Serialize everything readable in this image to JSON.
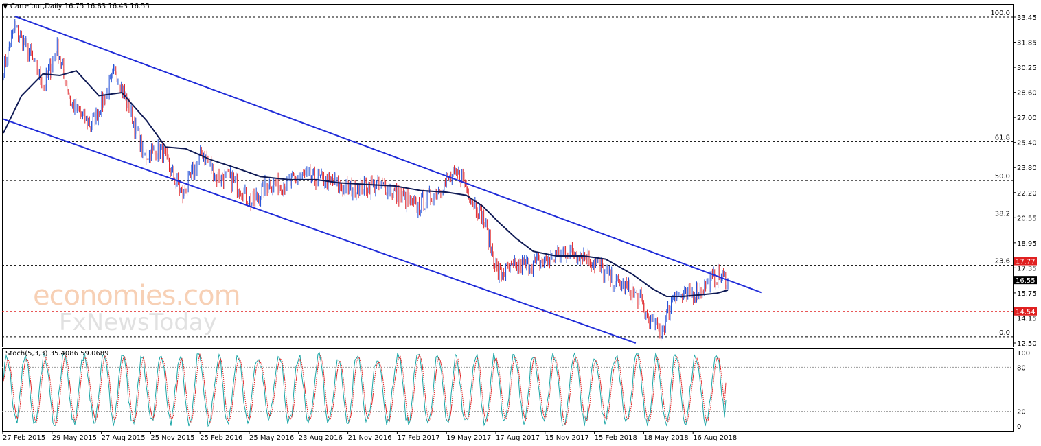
{
  "header": {
    "main_title": "Carrefour,Daily  16.75 16.83 16.43 16.55",
    "osc_title": "Stoch(5,3,3) 35.4086 59.0689"
  },
  "watermark": {
    "line1": "economies.com",
    "line2": "FxNewsToday"
  },
  "colors": {
    "up": "#1c4bd6",
    "down": "#e0262a",
    "ma": "#0f1a55",
    "channel": "#1f2bd8",
    "grid": "#000000",
    "red_level": "#e02020",
    "price_tag": "#000000",
    "stoch_main": "#1aa6a6",
    "stoch_signal": "#e02020"
  },
  "chart_data": [
    {
      "type": "line",
      "title": "Carrefour,Daily",
      "ohlc_last": {
        "open": 16.75,
        "high": 16.83,
        "low": 16.43,
        "close": 16.55
      },
      "y_ticks": [
        "33.45",
        "31.85",
        "30.25",
        "28.60",
        "27.00",
        "25.40",
        "23.80",
        "22.20",
        "20.55",
        "18.95",
        "17.35",
        "15.75",
        "14.15",
        "12.50"
      ],
      "ylim": [
        12.5,
        33.45
      ],
      "x_tick_labels": [
        "27 Feb 2015",
        "29 May 2015",
        "27 Aug 2015",
        "25 Nov 2015",
        "25 Feb 2016",
        "25 May 2016",
        "23 Aug 2016",
        "21 Nov 2016",
        "17 Feb 2017",
        "19 May 2017",
        "17 Aug 2017",
        "15 Nov 2017",
        "15 Feb 2018",
        "18 May 2018",
        "16 Aug 2018"
      ],
      "price_path": {
        "x": [
          "2015-02-27",
          "2015-03-20",
          "2015-04-15",
          "2015-05-12",
          "2015-06-05",
          "2015-07-01",
          "2015-08-05",
          "2015-08-27",
          "2015-09-20",
          "2015-10-20",
          "2015-11-10",
          "2015-12-10",
          "2016-01-20",
          "2016-02-25",
          "2016-03-20",
          "2016-04-20",
          "2016-05-25",
          "2016-06-24",
          "2016-07-20",
          "2016-08-23",
          "2016-10-01",
          "2016-11-21",
          "2016-12-20",
          "2017-01-20",
          "2017-02-17",
          "2017-03-20",
          "2017-04-20",
          "2017-05-19",
          "2017-06-10",
          "2017-06-30",
          "2017-07-20",
          "2017-08-17",
          "2017-09-20",
          "2017-10-20",
          "2017-11-15",
          "2017-12-20",
          "2018-01-20",
          "2018-02-15",
          "2018-03-10",
          "2018-04-10",
          "2018-05-01",
          "2018-05-18",
          "2018-06-10",
          "2018-07-05",
          "2018-07-25",
          "2018-08-16",
          "2018-09-20",
          "2018-10-10"
        ],
        "y": [
          30.2,
          32.8,
          31.2,
          29.0,
          31.5,
          27.8,
          26.5,
          28.0,
          30.0,
          27.0,
          24.5,
          25.0,
          22.0,
          24.8,
          23.2,
          23.0,
          21.5,
          22.8,
          22.6,
          23.2,
          23.0,
          22.4,
          22.6,
          22.6,
          22.0,
          21.2,
          22.0,
          23.0,
          23.3,
          21.8,
          20.6,
          16.9,
          17.4,
          17.6,
          17.8,
          18.4,
          18.2,
          17.5,
          16.6,
          16.0,
          15.4,
          14.0,
          13.2,
          15.8,
          15.4,
          15.8,
          16.8,
          16.55
        ]
      },
      "ma_path": {
        "x": [
          "2015-02-27",
          "2015-04-01",
          "2015-05-10",
          "2015-06-10",
          "2015-07-10",
          "2015-08-20",
          "2015-10-01",
          "2015-11-15",
          "2015-12-20",
          "2016-01-25",
          "2016-03-10",
          "2016-05-01",
          "2016-06-10",
          "2016-08-01",
          "2016-09-20",
          "2016-11-01",
          "2016-12-20",
          "2017-02-10",
          "2017-03-30",
          "2017-05-15",
          "2017-06-20",
          "2017-07-20",
          "2017-08-20",
          "2017-09-20",
          "2017-10-20",
          "2017-12-01",
          "2018-01-20",
          "2018-03-01",
          "2018-04-20",
          "2018-05-25",
          "2018-06-20",
          "2018-07-20",
          "2018-08-20",
          "2018-09-20",
          "2018-10-10"
        ],
        "y": [
          26.0,
          28.4,
          29.8,
          29.7,
          30.0,
          28.4,
          28.6,
          26.8,
          25.1,
          25.0,
          24.3,
          23.7,
          23.2,
          23.0,
          23.0,
          22.8,
          22.7,
          22.6,
          22.3,
          22.2,
          22.0,
          21.3,
          20.2,
          19.2,
          18.4,
          18.1,
          18.1,
          17.9,
          16.9,
          16.0,
          15.5,
          15.5,
          15.6,
          15.7,
          15.9
        ]
      },
      "channel": {
        "upper": {
          "x1": "2015-03-20",
          "y1": 33.5,
          "x2": "2018-12-10",
          "y2": 15.75
        },
        "lower": {
          "x1": "2015-02-27",
          "y1": 26.9,
          "x2": "2018-04-25",
          "y2": 12.5
        }
      },
      "fib_levels": [
        {
          "label": "100.0",
          "value": 33.45
        },
        {
          "label": "61.8",
          "value": 25.45
        },
        {
          "label": "50.0",
          "value": 22.95
        },
        {
          "label": "38.2",
          "value": 20.55
        },
        {
          "label": "23.6",
          "value": 17.5
        },
        {
          "label": "0.0",
          "value": 12.9
        }
      ],
      "red_levels": [
        {
          "label": "17.77",
          "value": 17.77
        },
        {
          "label": "14.54",
          "value": 14.54
        }
      ],
      "current_price": {
        "label": "16.55",
        "value": 16.55
      }
    },
    {
      "type": "line",
      "title": "Stoch(5,3,3) 35.4086 59.0689",
      "ylim": [
        0,
        100
      ],
      "y_ticks": [
        "100",
        "80",
        "20",
        "0"
      ],
      "main_last": 35.4086,
      "signal_last": 59.0689,
      "levels": [
        80,
        20
      ]
    }
  ]
}
